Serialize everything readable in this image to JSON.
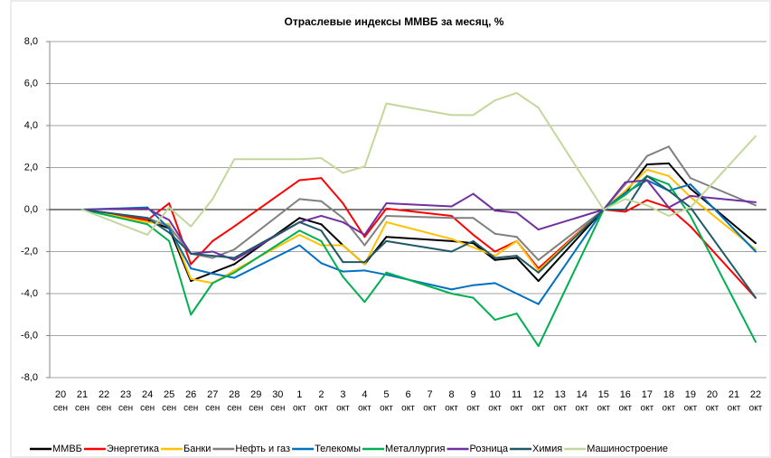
{
  "chart_data": {
    "type": "line",
    "title": "Отраслевые индексы ММВБ за месяц, %",
    "categories": [
      [
        "20",
        "сен"
      ],
      [
        "21",
        "сен"
      ],
      [
        "22",
        "сен"
      ],
      [
        "23",
        "сен"
      ],
      [
        "24",
        "сен"
      ],
      [
        "25",
        "сен"
      ],
      [
        "26",
        "сен"
      ],
      [
        "27",
        "сен"
      ],
      [
        "28",
        "сен"
      ],
      [
        "29",
        "сен"
      ],
      [
        "30",
        "сен"
      ],
      [
        "1",
        "окт"
      ],
      [
        "2",
        "окт"
      ],
      [
        "3",
        "окт"
      ],
      [
        "4",
        "окт"
      ],
      [
        "5",
        "окт"
      ],
      [
        "6",
        "окт"
      ],
      [
        "7",
        "окт"
      ],
      [
        "8",
        "окт"
      ],
      [
        "9",
        "окт"
      ],
      [
        "10",
        "окт"
      ],
      [
        "11",
        "окт"
      ],
      [
        "12",
        "окт"
      ],
      [
        "13",
        "окт"
      ],
      [
        "14",
        "окт"
      ],
      [
        "15",
        "окт"
      ],
      [
        "16",
        "окт"
      ],
      [
        "17",
        "окт"
      ],
      [
        "18",
        "окт"
      ],
      [
        "19",
        "окт"
      ],
      [
        "20",
        "окт"
      ],
      [
        "21",
        "окт"
      ],
      [
        "22",
        "окт"
      ]
    ],
    "series": [
      {
        "name": "ММВБ",
        "color": "#000000",
        "values": [
          null,
          0,
          null,
          null,
          -0.5,
          -0.9,
          -3.4,
          -3.0,
          -2.6,
          null,
          null,
          -0.4,
          -0.7,
          -1.7,
          -2.6,
          -1.3,
          null,
          null,
          -1.5,
          -1.6,
          -2.4,
          -2.3,
          -3.4,
          null,
          null,
          0,
          0.8,
          2.15,
          2.2,
          1.0,
          null,
          null,
          -1.6
        ]
      },
      {
        "name": "Энергетика",
        "color": "#ff0000",
        "values": [
          null,
          0,
          null,
          null,
          -0.5,
          0.3,
          -2.6,
          -1.5,
          -0.8,
          null,
          null,
          1.4,
          1.5,
          0.3,
          -1.3,
          0.05,
          null,
          null,
          -0.3,
          -1.2,
          -2.0,
          -1.5,
          -2.8,
          null,
          null,
          0,
          -0.1,
          0.45,
          0.1,
          -0.8,
          null,
          null,
          -4.2
        ]
      },
      {
        "name": "Банки",
        "color": "#ffc000",
        "values": [
          null,
          0,
          null,
          null,
          -0.6,
          -0.7,
          -3.3,
          -3.5,
          -2.9,
          null,
          null,
          -1.2,
          -1.7,
          -1.7,
          -2.6,
          -0.6,
          null,
          null,
          -1.4,
          -1.8,
          -2.2,
          -1.5,
          -2.9,
          null,
          null,
          0,
          0.9,
          1.9,
          1.6,
          0.6,
          null,
          null,
          -1.9
        ]
      },
      {
        "name": "Нефть и газ",
        "color": "#808080",
        "values": [
          null,
          0,
          null,
          null,
          -0.4,
          -0.8,
          -2.1,
          -2.3,
          -1.9,
          null,
          null,
          0.5,
          0.4,
          -0.4,
          -1.7,
          -0.3,
          null,
          null,
          -0.4,
          -0.4,
          -1.15,
          -1.3,
          -2.4,
          null,
          null,
          0,
          1.2,
          2.55,
          3.0,
          1.5,
          null,
          null,
          0.2
        ]
      },
      {
        "name": "Телекомы",
        "color": "#0070c0",
        "values": [
          null,
          0,
          null,
          null,
          0.1,
          -0.9,
          -2.8,
          -3.05,
          -3.25,
          null,
          null,
          -1.7,
          -2.55,
          -2.95,
          -2.9,
          -3.1,
          null,
          null,
          -3.8,
          -3.6,
          -3.5,
          -4.0,
          -4.5,
          null,
          null,
          0,
          0.8,
          1.4,
          0.9,
          1.2,
          null,
          null,
          -2.0
        ]
      },
      {
        "name": "Металлургия",
        "color": "#00b050",
        "values": [
          null,
          0,
          null,
          null,
          -0.7,
          -1.5,
          -5.0,
          -3.5,
          -3.0,
          null,
          null,
          -1.0,
          -1.5,
          -3.2,
          -4.4,
          -3.0,
          null,
          null,
          -4.0,
          -4.2,
          -5.25,
          -4.95,
          -6.5,
          null,
          null,
          0,
          0.7,
          1.6,
          1.2,
          -0.3,
          null,
          null,
          -6.3
        ]
      },
      {
        "name": "Розница",
        "color": "#7030a0",
        "values": [
          null,
          0,
          null,
          null,
          0.05,
          -0.5,
          -2.1,
          -2.0,
          -2.4,
          null,
          null,
          -0.6,
          -0.3,
          -0.6,
          -1.2,
          0.3,
          null,
          null,
          0.15,
          0.75,
          -0.05,
          -0.15,
          -0.95,
          null,
          null,
          0,
          1.3,
          1.4,
          0.1,
          0.65,
          null,
          null,
          0.35
        ]
      },
      {
        "name": "Химия",
        "color": "#215968",
        "values": [
          null,
          0,
          null,
          null,
          -0.4,
          -1.1,
          -2.1,
          -2.2,
          -2.3,
          null,
          null,
          -0.6,
          -1.0,
          -2.5,
          -2.5,
          -1.5,
          null,
          null,
          -2.0,
          -1.5,
          -2.3,
          -2.2,
          -3.0,
          null,
          null,
          0,
          0.0,
          1.6,
          0.9,
          0.1,
          null,
          null,
          -4.2
        ]
      },
      {
        "name": "Машиностроение",
        "color": "#c4d79b",
        "values": [
          null,
          0,
          null,
          null,
          -1.2,
          0.1,
          -0.8,
          0.5,
          2.4,
          null,
          null,
          2.4,
          2.45,
          1.75,
          2.05,
          5.05,
          null,
          null,
          4.5,
          4.5,
          5.2,
          5.55,
          4.85,
          null,
          null,
          0,
          0.5,
          0.2,
          -0.3,
          0.1,
          null,
          null,
          3.5
        ]
      }
    ],
    "ylim": [
      -8,
      8
    ],
    "yticks": [
      {
        "value": -8,
        "label": "-8,0"
      },
      {
        "value": -6,
        "label": "-6,0"
      },
      {
        "value": -4,
        "label": "-4,0"
      },
      {
        "value": -2,
        "label": "-2,0"
      },
      {
        "value": 0,
        "label": "0,0"
      },
      {
        "value": 2,
        "label": "2,0"
      },
      {
        "value": 4,
        "label": "4,0"
      },
      {
        "value": 6,
        "label": "6,0"
      },
      {
        "value": 8,
        "label": "8,0"
      }
    ],
    "grid": true,
    "legend": "bottom"
  }
}
